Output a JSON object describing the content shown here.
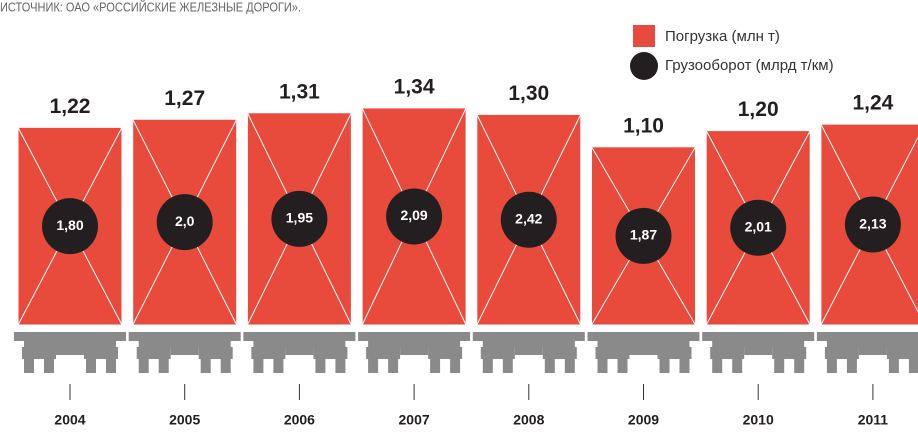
{
  "chart_data": {
    "type": "bar",
    "source": "ИСТОЧНИК: ОАО «РОССИЙСКИЕ ЖЕЛЕЗНЫЕ ДОРОГИ».",
    "categories": [
      "2004",
      "2005",
      "2006",
      "2007",
      "2008",
      "2009",
      "2010",
      "2011"
    ],
    "series": [
      {
        "name": "Погрузка (млн т)",
        "color": "#e84a3c",
        "values": [
          1.22,
          1.27,
          1.31,
          1.34,
          1.3,
          1.1,
          1.2,
          1.24
        ],
        "value_labels": [
          "1,22",
          "1,27",
          "1,31",
          "1,34",
          "1,30",
          "1,10",
          "1,20",
          "1,24"
        ]
      },
      {
        "name": "Грузооборот (млрд т/км)",
        "color": "#231f20",
        "values": [
          1.8,
          2.0,
          1.95,
          2.09,
          2.42,
          1.87,
          2.01,
          2.13
        ],
        "value_labels": [
          "1,80",
          "2,0",
          "1,95",
          "2,09",
          "2,42",
          "1,87",
          "2,01",
          "2,13"
        ]
      }
    ]
  }
}
